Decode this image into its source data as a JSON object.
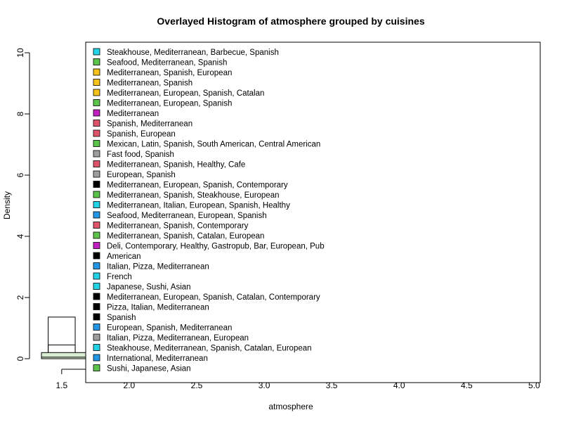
{
  "chart_data": {
    "type": "histogram",
    "title": "Overlayed Histogram of atmosphere grouped by cuisines",
    "xlabel": "atmosphere",
    "ylabel": "Density",
    "xlim": [
      1.35,
      5.05
    ],
    "ylim": [
      0,
      10
    ],
    "x_ticks": [
      "1.5",
      "2.0",
      "2.5",
      "3.0",
      "3.5",
      "4.0",
      "4.5",
      "5.0"
    ],
    "y_ticks": [
      "0",
      "2",
      "4",
      "6",
      "8",
      "10"
    ],
    "legend_position": "top-right",
    "series": [
      {
        "name": "Steakhouse, Mediterranean, Barbecue, Spanish",
        "color": "#22d3e6"
      },
      {
        "name": "Seafood, Mediterranean, Spanish",
        "color": "#5bc24a"
      },
      {
        "name": "Mediterranean, Spanish, European",
        "color": "#f5c21b"
      },
      {
        "name": "Mediterranean, Spanish",
        "color": "#f5c21b"
      },
      {
        "name": "Mediterranean, European, Spanish, Catalan",
        "color": "#f5c21b"
      },
      {
        "name": "Mediterranean, European, Spanish",
        "color": "#5bc24a"
      },
      {
        "name": "Mediterranean",
        "color": "#c11fc1"
      },
      {
        "name": "Spanish, Mediterranean",
        "color": "#df536b"
      },
      {
        "name": "Spanish, European",
        "color": "#df536b"
      },
      {
        "name": "Mexican, Latin, Spanish, South American, Central American",
        "color": "#5bc24a"
      },
      {
        "name": "Fast food, Spanish",
        "color": "#9e9e9e"
      },
      {
        "name": "Mediterranean, Spanish, Healthy, Cafe",
        "color": "#df536b"
      },
      {
        "name": "European, Spanish",
        "color": "#9e9e9e"
      },
      {
        "name": "Mediterranean, European, Spanish, Contemporary",
        "color": "#000000"
      },
      {
        "name": "Mediterranean, Spanish, Steakhouse, European",
        "color": "#5bc24a"
      },
      {
        "name": "Mediterranean, Italian, European, Spanish, Healthy",
        "color": "#22d3e6"
      },
      {
        "name": "Seafood, Mediterranean, European, Spanish",
        "color": "#2297e6"
      },
      {
        "name": "Mediterranean, Spanish, Contemporary",
        "color": "#df536b"
      },
      {
        "name": "Mediterranean, Spanish, Catalan, European",
        "color": "#5bc24a"
      },
      {
        "name": "Deli, Contemporary, Healthy, Gastropub, Bar, European, Pub",
        "color": "#c11fc1"
      },
      {
        "name": "American",
        "color": "#000000"
      },
      {
        "name": "Italian, Pizza, Mediterranean",
        "color": "#2297e6"
      },
      {
        "name": "French",
        "color": "#22d3e6"
      },
      {
        "name": "Japanese, Sushi, Asian",
        "color": "#22d3e6"
      },
      {
        "name": "Mediterranean, European, Spanish, Catalan, Contemporary",
        "color": "#000000"
      },
      {
        "name": "Pizza, Italian, Mediterranean",
        "color": "#000000"
      },
      {
        "name": "Spanish",
        "color": "#000000"
      },
      {
        "name": "European, Spanish, Mediterranean",
        "color": "#2297e6"
      },
      {
        "name": "Italian, Pizza, Mediterranean, European",
        "color": "#9e9e9e"
      },
      {
        "name": "Steakhouse, Mediterranean, Spanish, Catalan, European",
        "color": "#22d3e6"
      },
      {
        "name": "International, Mediterranean",
        "color": "#2297e6"
      },
      {
        "name": "Sushi, Japanese, Asian",
        "color": "#5bc24a"
      }
    ],
    "bins": [
      {
        "x0": 1.4,
        "x1": 1.6,
        "y": 1.36,
        "fill": "none"
      },
      {
        "x0": 1.4,
        "x1": 1.6,
        "y": 0.45,
        "fill": "none"
      },
      {
        "x0": 1.35,
        "x1": 1.75,
        "y": 0.2,
        "fill": "#d9ecd2"
      },
      {
        "x0": 1.35,
        "x1": 1.75,
        "y": 0.05,
        "fill": "#d9ecd2"
      }
    ]
  }
}
